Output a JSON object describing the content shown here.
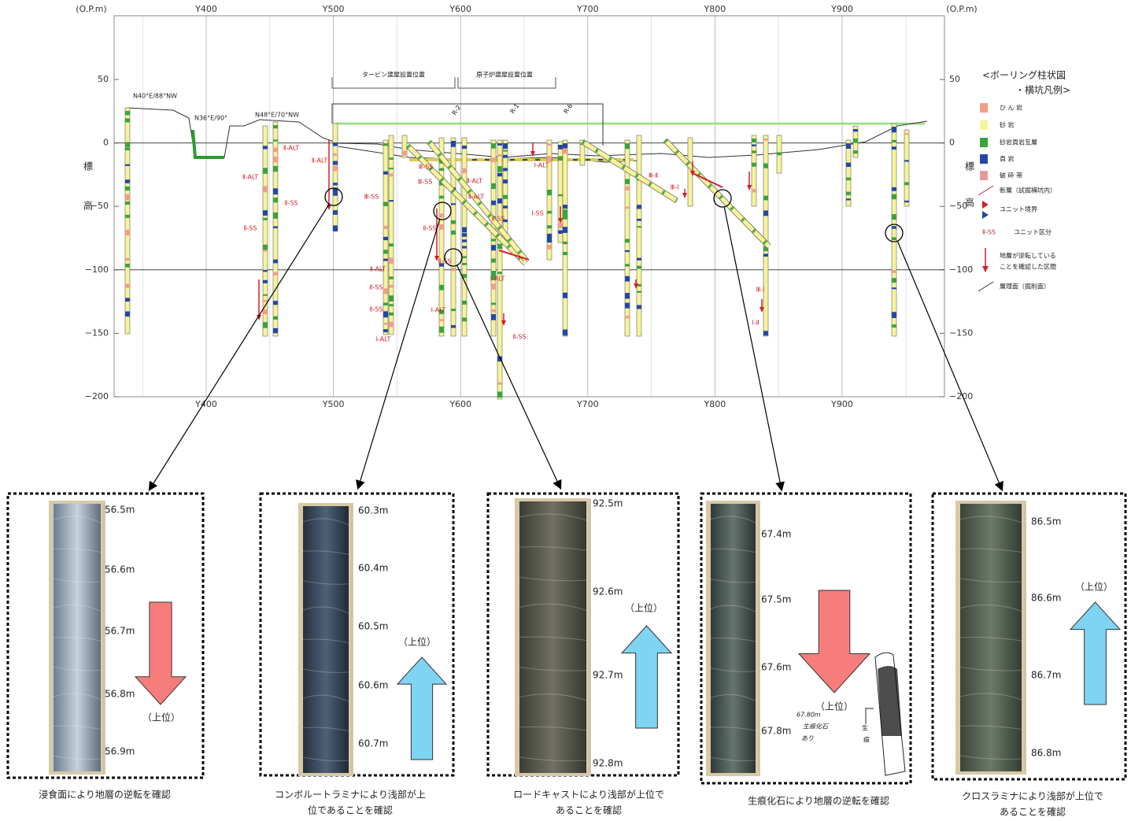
{
  "cross_section": {
    "axis_unit_left": "(O.P.m)",
    "axis_unit_right": "(O.P.m)",
    "x_ticks": [
      "Y400",
      "Y500",
      "Y600",
      "Y700",
      "Y800",
      "Y900"
    ],
    "y_ticks": [
      "50",
      "0",
      "−50",
      "−100",
      "−150",
      "−200"
    ],
    "y_axis_label": [
      "標",
      "高"
    ],
    "building_labels": [
      "タービン建屋設置位置",
      "原子炉建屋設置位置"
    ],
    "borehole_names": [
      "R-2",
      "R-1",
      "R-6"
    ],
    "strike_labels": [
      "N40°E/88°NW",
      "N36°E/90°",
      "N48°E/70°NW"
    ],
    "unit_labels": [
      "Ⅱ-ALT",
      "Ⅱ-ALT",
      "Ⅱ-SS",
      "Ⅱ-SS",
      "Ⅱ-ALT",
      "Ⅲ-SS",
      "Ⅱ-ALT",
      "Ⅱ-SS",
      "Ⅱ-SS",
      "Ⅰ-ALT",
      "Ⅲ-SS",
      "Ⅲ-SS",
      "Ⅱ-SS",
      "Ⅱ-SS",
      "Ⅰ-ALT",
      "Ⅱ-ALT",
      "Ⅱ-ALT",
      "Ⅱ-SS",
      "Ⅰ-ALT",
      "Ⅱ-SS",
      "Ⅰ-ALT",
      "Ⅰ-SS",
      "Ⅲ-Ⅱ",
      "Ⅲ-Ⅰ",
      "Ⅲ-Ⅰ",
      "Ⅰ-Ⅱ"
    ]
  },
  "legend": {
    "title": [
      "<ボーリング柱状図",
      "・横坑凡例>"
    ],
    "items": [
      "ひ ん 岩",
      "砂 岩",
      "砂岩頁岩互層",
      "頁 岩",
      "破 砕 帯",
      "断層（試掘横坑内）",
      "ユニット境界",
      "ユニット区分",
      "地層が逆転している",
      "ことを確認した区間",
      "層理面（掘削面）"
    ],
    "unit_example": "Ⅱ-SS"
  },
  "panels": [
    {
      "depths": [
        "56.5m",
        "56.6m",
        "56.7m",
        "56.8m",
        "56.9m"
      ],
      "marker": "（上位）",
      "caption": [
        "浸食面により地層の逆転を確認"
      ]
    },
    {
      "depths": [
        "60.3m",
        "60.4m",
        "60.5m",
        "60.6m",
        "60.7m"
      ],
      "marker": "（上位）",
      "caption": [
        "コンボルートラミナにより浅部が上",
        "位であることを確認"
      ]
    },
    {
      "depths": [
        "92.5m",
        "92.6m",
        "92.7m",
        "92.8m"
      ],
      "marker": "（上位）",
      "caption": [
        "ロードキャストにより浅部が上位で",
        "あることを確認"
      ]
    },
    {
      "depths": [
        "67.4m",
        "67.5m",
        "67.6m",
        "67.8m"
      ],
      "marker": "（上位）",
      "caption": [
        "生痕化石により地層の逆転を確認"
      ],
      "note": [
        "67.80m",
        "生痕化石",
        "あり"
      ],
      "sketch_label": [
        "生",
        "痕"
      ]
    },
    {
      "depths": [
        "86.5m",
        "86.6m",
        "86.7m",
        "86.8m"
      ],
      "marker": "（上位）",
      "caption": [
        "クロスラミナにより浅部が上位で",
        "あることを確認"
      ]
    }
  ]
}
